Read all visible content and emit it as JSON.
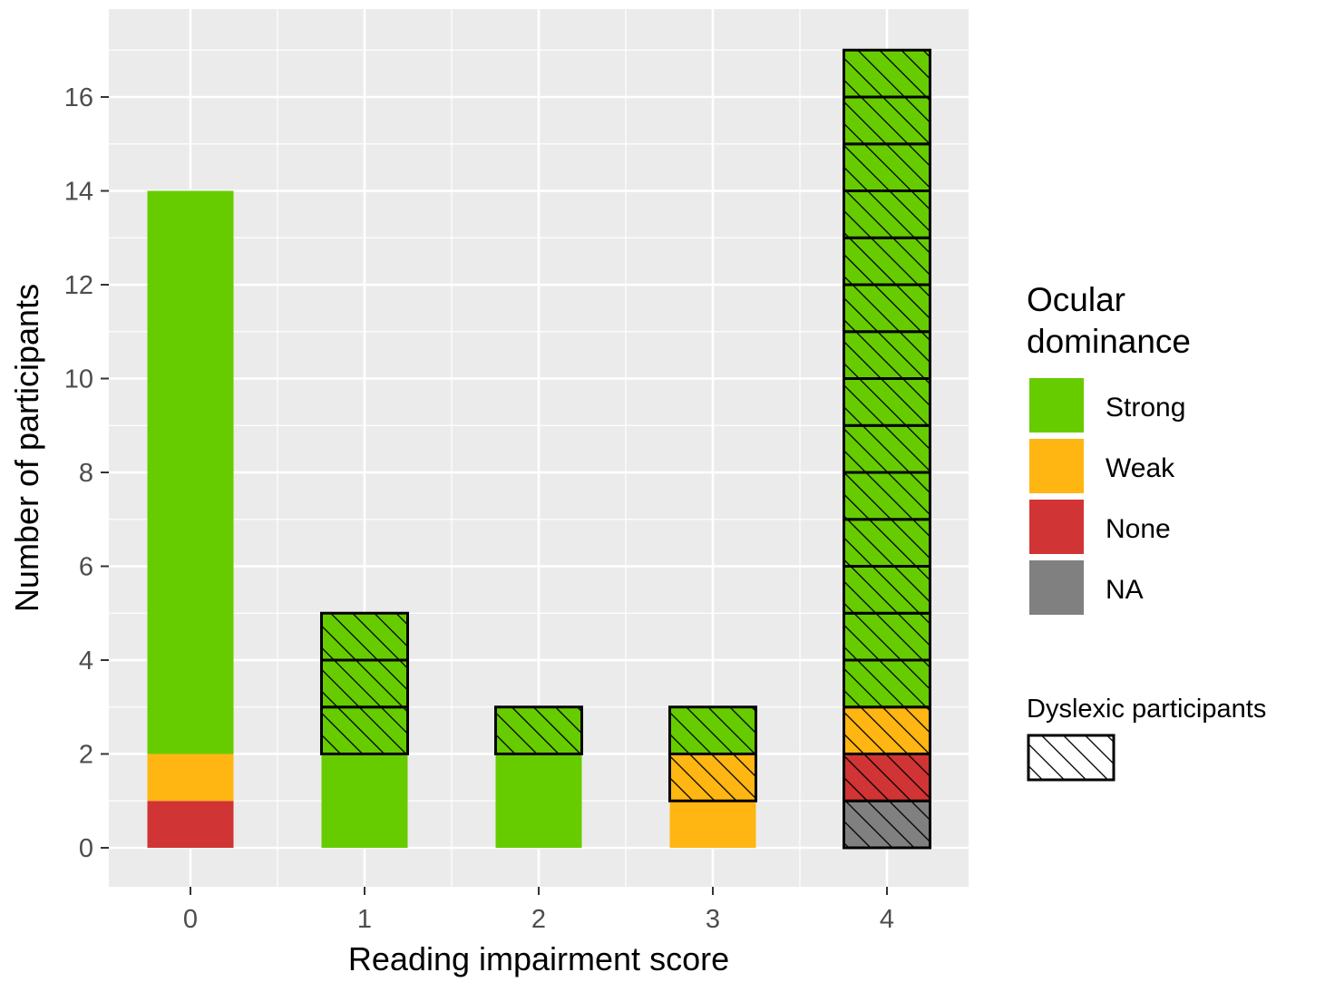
{
  "chart_data": {
    "type": "bar",
    "stacked": true,
    "xlabel": "Reading impairment score",
    "ylabel": "Number of participants",
    "categories": [
      "0",
      "1",
      "2",
      "3",
      "4"
    ],
    "ylim": [
      0,
      17.5
    ],
    "yticks": [
      0,
      2,
      4,
      6,
      8,
      10,
      12,
      14,
      16
    ],
    "grid": true,
    "legend_position": "right",
    "legend": {
      "title": "Ocular dominance",
      "title_lines": [
        "Ocular",
        "dominance"
      ],
      "entries": [
        {
          "key": "Strong",
          "label": "Strong",
          "color": "#66cc00"
        },
        {
          "key": "Weak",
          "label": "Weak",
          "color": "#ffb612"
        },
        {
          "key": "None",
          "label": "None",
          "color": "#d13434"
        },
        {
          "key": "NA",
          "label": "NA",
          "color": "#808080"
        }
      ],
      "pattern_title": "Dyslexic participants"
    },
    "segments": [
      {
        "category": "0",
        "dominance": "None",
        "dyslexic": false,
        "count": 1
      },
      {
        "category": "0",
        "dominance": "Weak",
        "dyslexic": false,
        "count": 1
      },
      {
        "category": "0",
        "dominance": "Strong",
        "dyslexic": false,
        "count": 12
      },
      {
        "category": "1",
        "dominance": "Strong",
        "dyslexic": false,
        "count": 2
      },
      {
        "category": "1",
        "dominance": "Strong",
        "dyslexic": true,
        "count": 3
      },
      {
        "category": "2",
        "dominance": "Strong",
        "dyslexic": false,
        "count": 2
      },
      {
        "category": "2",
        "dominance": "Strong",
        "dyslexic": true,
        "count": 1
      },
      {
        "category": "3",
        "dominance": "Weak",
        "dyslexic": false,
        "count": 1
      },
      {
        "category": "3",
        "dominance": "Weak",
        "dyslexic": true,
        "count": 1
      },
      {
        "category": "3",
        "dominance": "Strong",
        "dyslexic": true,
        "count": 1
      },
      {
        "category": "4",
        "dominance": "NA",
        "dyslexic": true,
        "count": 1
      },
      {
        "category": "4",
        "dominance": "None",
        "dyslexic": true,
        "count": 1
      },
      {
        "category": "4",
        "dominance": "Weak",
        "dyslexic": true,
        "count": 1
      },
      {
        "category": "4",
        "dominance": "Strong",
        "dyslexic": true,
        "count": 14
      }
    ],
    "totals": [
      14,
      5,
      3,
      3,
      17
    ]
  }
}
